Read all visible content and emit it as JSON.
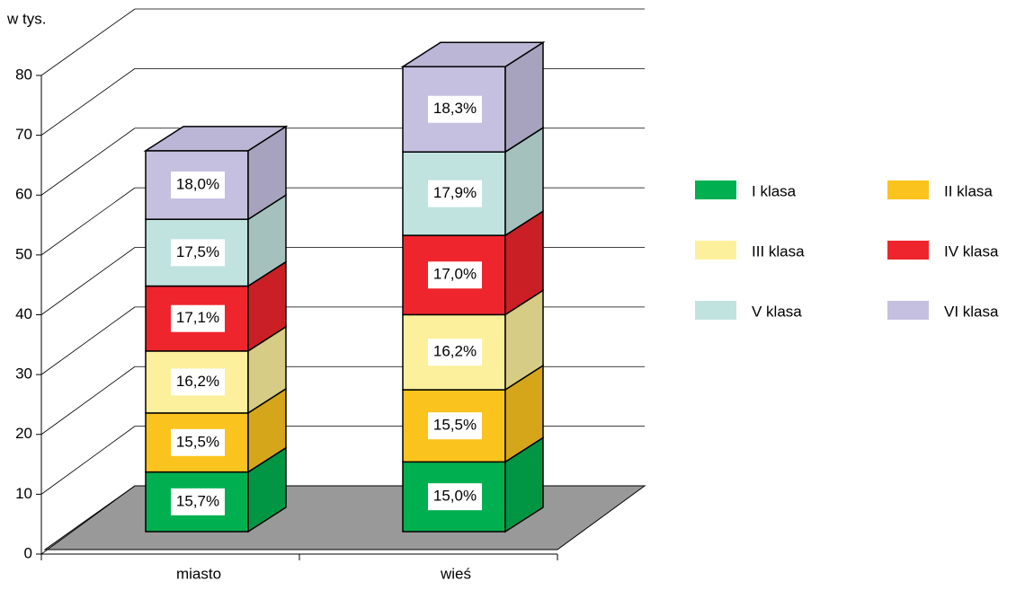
{
  "chart_data": {
    "type": "bar3d_stacked",
    "y_label": "w tys.",
    "categories": [
      "miasto",
      "wieś"
    ],
    "ylim": [
      0,
      80
    ],
    "yticks": [
      0,
      10,
      20,
      30,
      40,
      50,
      60,
      70,
      80
    ],
    "grid": true,
    "legend": "right",
    "series": [
      {
        "name": "I klasa",
        "color": "#00b050",
        "values": [
          10.0,
          11.7
        ],
        "value_labels": [
          "15,7%",
          "15,0%"
        ]
      },
      {
        "name": "II klasa",
        "color": "#fbc31e",
        "values": [
          9.9,
          12.1
        ],
        "value_labels": [
          "15,5%",
          "15,5%"
        ]
      },
      {
        "name": "III klasa",
        "color": "#fdf09c",
        "values": [
          10.4,
          12.6
        ],
        "value_labels": [
          "16,2%",
          "16,2%"
        ]
      },
      {
        "name": "IV klasa",
        "color": "#ee252c",
        "values": [
          10.9,
          13.3
        ],
        "value_labels": [
          "17,1%",
          "17,0%"
        ]
      },
      {
        "name": "V klasa",
        "color": "#c1e3e0",
        "values": [
          11.2,
          14.0
        ],
        "value_labels": [
          "17,5%",
          "17,9%"
        ]
      },
      {
        "name": "VI klasa",
        "color": "#c5c0e0",
        "values": [
          11.5,
          14.3
        ],
        "value_labels": [
          "18,0%",
          "18,3%"
        ]
      }
    ]
  }
}
